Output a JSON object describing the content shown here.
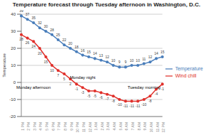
{
  "chart_data": {
    "type": "line",
    "title": "Temperature forecast through Tuesday afternoon in Washington, D.C.",
    "ylabel": "Temperature",
    "categories": [
      "1 PM",
      "2 PM",
      "3 PM",
      "4 PM",
      "5 PM",
      "6 PM",
      "7 PM",
      "8 PM",
      "9 PM",
      "10 PM",
      "11 PM",
      "12 AM",
      "1 AM",
      "2 AM",
      "3 AM",
      "4 AM",
      "5 AM",
      "6 AM",
      "7 AM",
      "8 AM",
      "9 AM",
      "10 AM",
      "11 AM",
      "12 PM"
    ],
    "series": [
      {
        "name": "Temperature",
        "color": "#4a7ebb",
        "marker": "circle",
        "values": [
          39,
          37,
          35,
          32,
          30,
          28,
          25,
          22,
          20,
          18,
          16,
          15,
          14,
          13,
          12,
          10,
          9,
          9,
          10,
          10,
          11,
          12,
          14,
          15
        ]
      },
      {
        "name": "Wind chill",
        "color": "#e0302b",
        "marker": "circle",
        "values": [
          28,
          26,
          24,
          20,
          15,
          10,
          7,
          5,
          2,
          -1,
          -3,
          -5,
          -5,
          -6,
          -7,
          -8,
          -10,
          -11,
          -11,
          -11,
          -10,
          -8,
          -4,
          -1
        ]
      }
    ],
    "ylim": [
      -20,
      40
    ],
    "yticks": [
      -20,
      -10,
      0,
      10,
      20,
      30,
      40
    ],
    "grid": true,
    "legend": "right",
    "data_labels": true,
    "annotations": [
      {
        "text": "Monday afternoon",
        "x": "3 PM",
        "y": -3
      },
      {
        "text": "Monday night",
        "x": "11 PM",
        "y": 3
      },
      {
        "text": "Tuesday morning",
        "x": "9 AM",
        "y": -3
      }
    ]
  }
}
